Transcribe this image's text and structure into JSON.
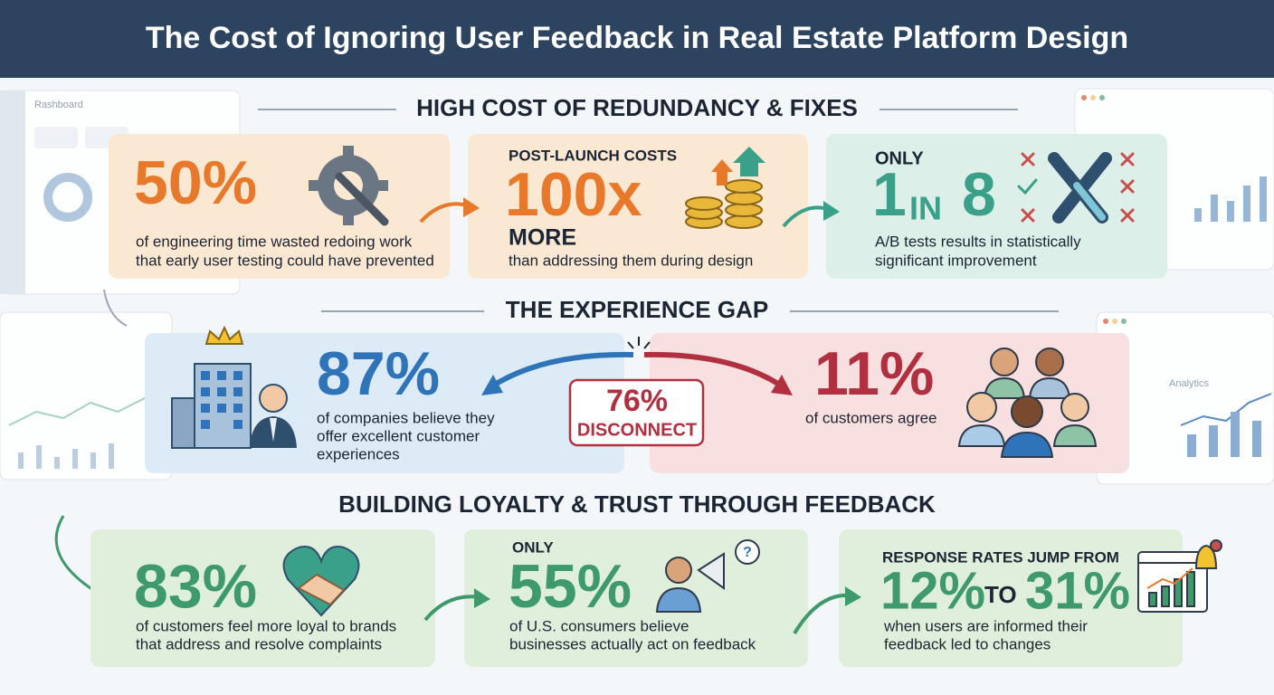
{
  "title": "The Cost of Ignoring User Feedback in Real Estate Platform Design",
  "background": {
    "dashboard_left": "Rashboard",
    "dashboard_right": "Analytics"
  },
  "sections": [
    {
      "heading": "HIGH COST OF REDUNDANCY & FIXES",
      "cards": [
        {
          "stat": "50%",
          "lines": [
            "of engineering time wasted redoing work",
            "that early user testing could have prevented"
          ]
        },
        {
          "kicker": "POST-LAUNCH COSTS",
          "stat": "100x",
          "suffix": "MORE",
          "lines": [
            "than addressing them during design"
          ]
        },
        {
          "kicker": "ONLY",
          "stat_parts": [
            "1",
            "IN",
            "8"
          ],
          "lines": [
            "A/B tests results in statistically",
            "significant improvement"
          ]
        }
      ]
    },
    {
      "heading": "THE EXPERIENCE GAP",
      "cards": [
        {
          "stat": "87%",
          "lines": [
            "of companies believe they",
            "offer excellent customer",
            "experiences"
          ]
        },
        {
          "stat": "11%",
          "lines": [
            "of customers agree"
          ]
        }
      ],
      "gap": {
        "stat": "76%",
        "label": "DISCONNECT"
      }
    },
    {
      "heading": "BUILDING LOYALTY & TRUST THROUGH FEEDBACK",
      "cards": [
        {
          "stat": "83%",
          "lines": [
            "of customers feel more loyal to brands",
            "that address and resolve complaints"
          ]
        },
        {
          "kicker": "ONLY",
          "stat": "55%",
          "lines": [
            "of U.S. consumers believe",
            "businesses actually act on feedback"
          ]
        },
        {
          "kicker": "RESPONSE RATES JUMP FROM",
          "stat_parts": [
            "12%",
            "TO",
            "31%"
          ],
          "lines": [
            "when users are informed their",
            "feedback led to changes"
          ]
        }
      ]
    }
  ]
}
